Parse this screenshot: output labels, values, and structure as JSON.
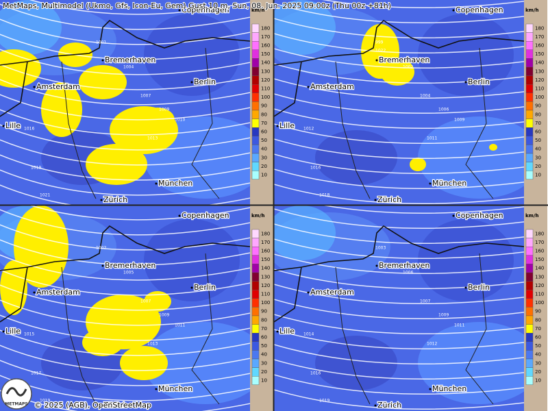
{
  "header": {
    "title": "MetMaps, Multimodel (Ukmo, Gfs, Icon-Eu, Gem) Gust 10 m, Sun, 08. Jun. 2025 09:00z (Thu 00z +81h)"
  },
  "legend": {
    "unit": "km/h",
    "levels": [
      {
        "value": "180",
        "color": "#ffd8ff"
      },
      {
        "value": "170",
        "color": "#ffa8ff"
      },
      {
        "value": "160",
        "color": "#ff70ff"
      },
      {
        "value": "150",
        "color": "#e030e0"
      },
      {
        "value": "140",
        "color": "#a000a8"
      },
      {
        "value": "130",
        "color": "#800030"
      },
      {
        "value": "120",
        "color": "#b00000"
      },
      {
        "value": "110",
        "color": "#e00000"
      },
      {
        "value": "100",
        "color": "#ff3000"
      },
      {
        "value": "90",
        "color": "#ff7000"
      },
      {
        "value": "80",
        "color": "#ffa800"
      },
      {
        "value": "70",
        "color": "#ffff00"
      },
      {
        "value": "60",
        "color": "#2838c0"
      },
      {
        "value": "50",
        "color": "#3c58e0"
      },
      {
        "value": "40",
        "color": "#4c78f0"
      },
      {
        "value": "30",
        "color": "#5aa8ff"
      },
      {
        "value": "20",
        "color": "#60d8ff"
      },
      {
        "value": "10",
        "color": "#a8ffff"
      }
    ]
  },
  "cities": [
    "Copenhagen",
    "Bremerhaven",
    "Amsterdam",
    "Berlin",
    "Lille",
    "München",
    "Zürich"
  ],
  "panels": [
    {
      "isobars": [
        "1001",
        "1004",
        "1007",
        "1009",
        "1010",
        "1013",
        "1016",
        "1019",
        "1021"
      ]
    },
    {
      "isobars": [
        "999",
        "1002",
        "1004",
        "1006",
        "1009",
        "1011",
        "1012",
        "1016",
        "1018",
        "1022"
      ]
    },
    {
      "isobars": [
        "1002",
        "1005",
        "1007",
        "1009",
        "1011",
        "1013",
        "1015",
        "1017",
        "1019"
      ]
    },
    {
      "isobars": [
        "1003",
        "1006",
        "1007",
        "1009",
        "1011",
        "1012",
        "1014",
        "1016",
        "1019"
      ]
    }
  ],
  "footer": {
    "copyright": "© 2025 (AGB), OpenStreetMap",
    "logo": "METMAPS"
  }
}
